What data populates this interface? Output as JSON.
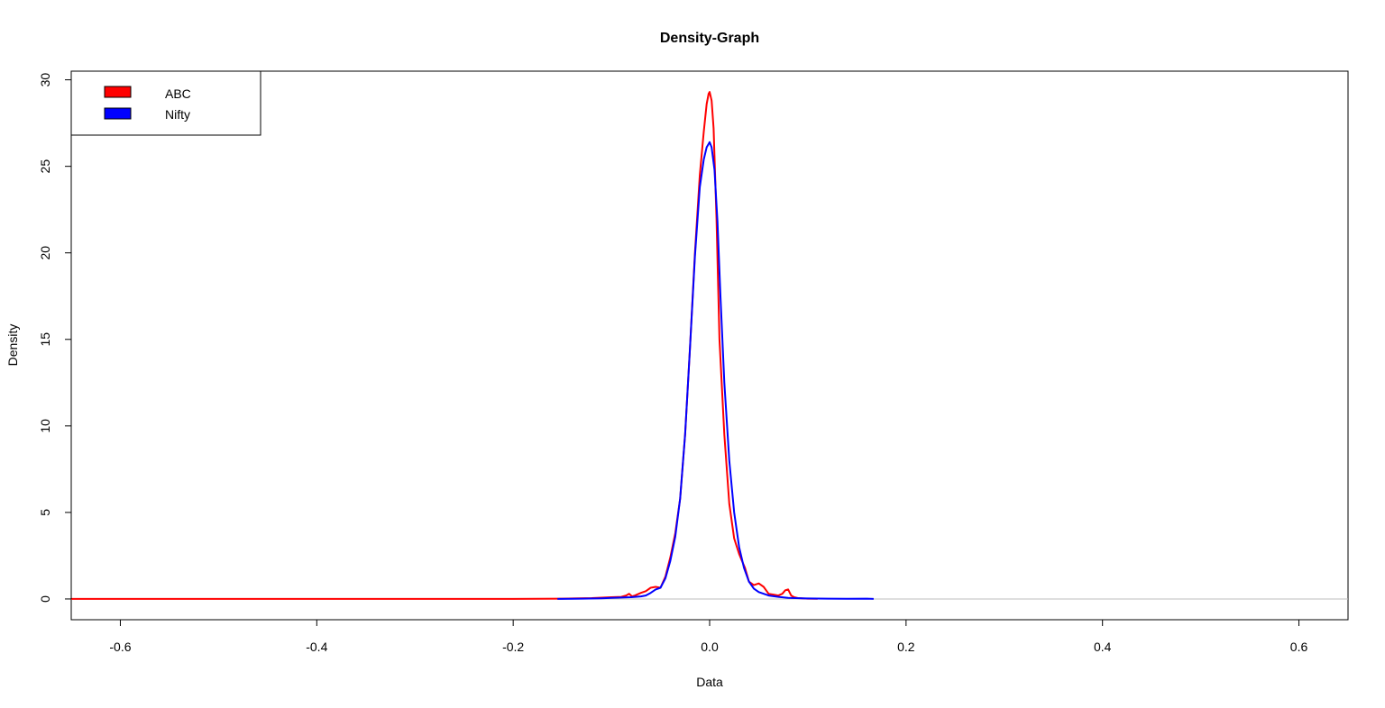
{
  "chart_data": {
    "type": "line",
    "title": "Density-Graph",
    "xlabel": "Data",
    "ylabel": "Density",
    "xlim": [
      -0.65,
      0.65
    ],
    "ylim": [
      -1.2,
      30.5
    ],
    "xticks": [
      -0.6,
      -0.4,
      -0.2,
      0.0,
      0.2,
      0.4,
      0.6
    ],
    "xtick_labels": [
      "-0.6",
      "-0.4",
      "-0.2",
      "0.0",
      "0.2",
      "0.4",
      "0.6"
    ],
    "yticks": [
      0,
      5,
      10,
      15,
      20,
      25,
      30
    ],
    "ytick_labels": [
      "0",
      "5",
      "10",
      "15",
      "20",
      "25",
      "30"
    ],
    "baseline": {
      "y": 0,
      "color": "#bebebe"
    },
    "grid": false,
    "legend": {
      "position": "top-left",
      "box": true
    },
    "series": [
      {
        "name": "ABC",
        "color": "#ff0000",
        "x": [
          -0.65,
          -0.5,
          -0.3,
          -0.2,
          -0.15,
          -0.12,
          -0.1,
          -0.09,
          -0.085,
          -0.082,
          -0.079,
          -0.076,
          -0.07,
          -0.065,
          -0.06,
          -0.055,
          -0.05,
          -0.045,
          -0.04,
          -0.035,
          -0.03,
          -0.025,
          -0.02,
          -0.015,
          -0.01,
          -0.006,
          -0.003,
          -0.001,
          0.0,
          0.002,
          0.004,
          0.007,
          0.01,
          0.015,
          0.02,
          0.025,
          0.03,
          0.033,
          0.036,
          0.04,
          0.045,
          0.05,
          0.055,
          0.06,
          0.065,
          0.07,
          0.074,
          0.077,
          0.08,
          0.083,
          0.086,
          0.09,
          0.1,
          0.11
        ],
        "y": [
          0.0,
          0.0,
          0.0,
          0.0,
          0.02,
          0.05,
          0.1,
          0.12,
          0.2,
          0.3,
          0.15,
          0.2,
          0.35,
          0.45,
          0.65,
          0.7,
          0.65,
          1.3,
          2.4,
          3.8,
          5.8,
          9.5,
          14.5,
          20.0,
          24.5,
          27.0,
          28.6,
          29.2,
          29.3,
          28.8,
          27.2,
          22.0,
          15.0,
          9.5,
          5.5,
          3.5,
          2.6,
          2.2,
          1.8,
          1.0,
          0.8,
          0.9,
          0.7,
          0.3,
          0.25,
          0.2,
          0.3,
          0.5,
          0.55,
          0.2,
          0.1,
          0.05,
          0.02,
          0.01
        ]
      },
      {
        "name": "Nifty",
        "color": "#0000ff",
        "x": [
          -0.155,
          -0.13,
          -0.11,
          -0.1,
          -0.09,
          -0.08,
          -0.07,
          -0.065,
          -0.06,
          -0.055,
          -0.05,
          -0.045,
          -0.04,
          -0.035,
          -0.03,
          -0.025,
          -0.02,
          -0.015,
          -0.01,
          -0.006,
          -0.003,
          -0.001,
          0.0,
          0.002,
          0.005,
          0.008,
          0.011,
          0.015,
          0.02,
          0.025,
          0.03,
          0.035,
          0.04,
          0.045,
          0.05,
          0.06,
          0.07,
          0.08,
          0.1,
          0.12,
          0.14,
          0.16,
          0.167
        ],
        "y": [
          0.0,
          0.02,
          0.04,
          0.06,
          0.08,
          0.1,
          0.15,
          0.2,
          0.35,
          0.55,
          0.65,
          1.2,
          2.2,
          3.6,
          5.8,
          9.5,
          14.5,
          19.8,
          23.8,
          25.4,
          26.1,
          26.3,
          26.4,
          26.1,
          24.8,
          21.8,
          17.5,
          12.5,
          8.0,
          5.0,
          3.0,
          1.8,
          1.0,
          0.6,
          0.4,
          0.2,
          0.12,
          0.06,
          0.03,
          0.02,
          0.01,
          0.02,
          0.0
        ]
      }
    ]
  }
}
